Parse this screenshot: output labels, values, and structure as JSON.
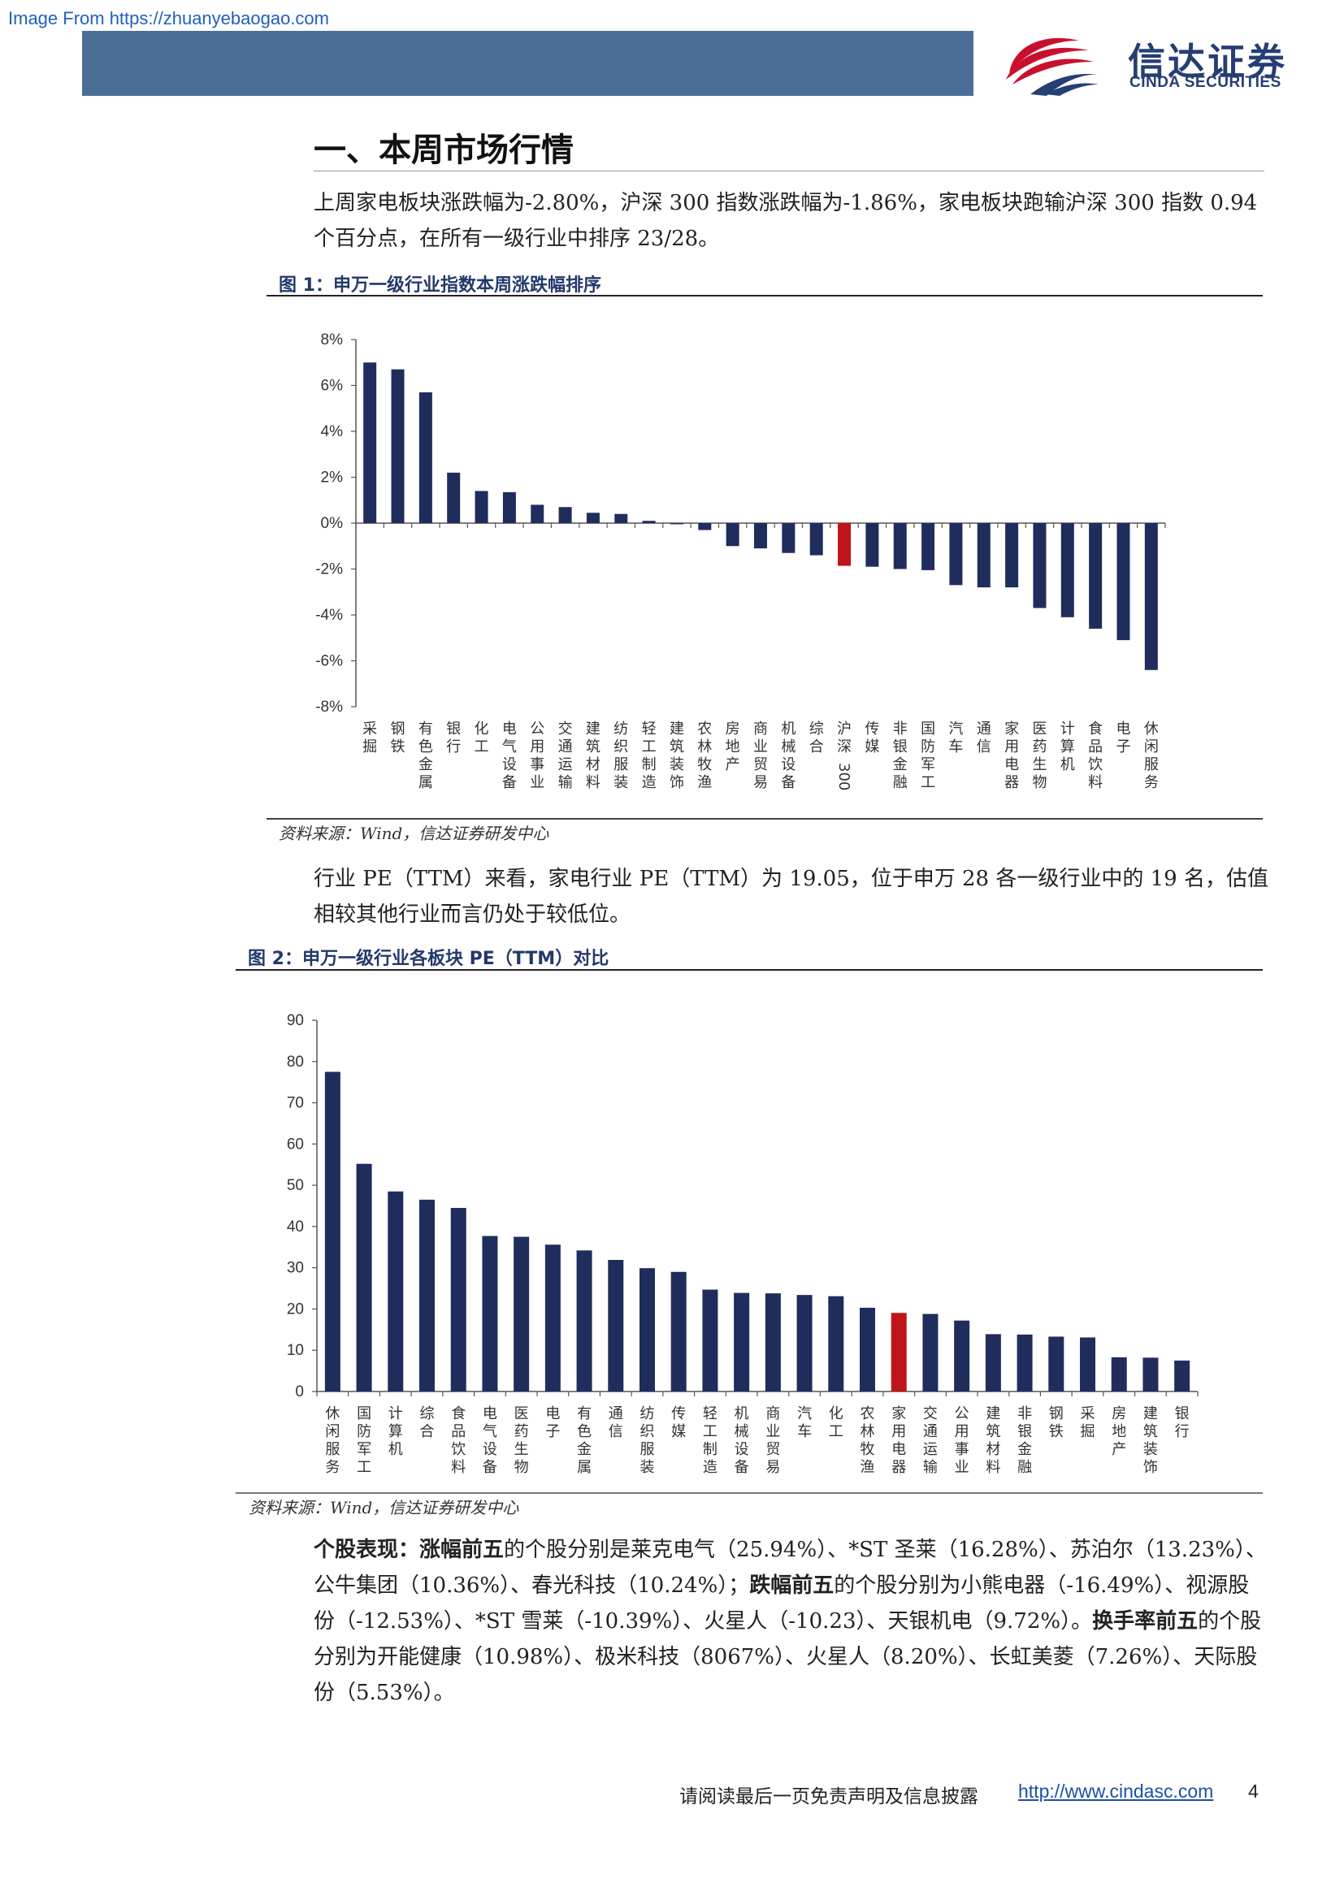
{
  "watermark": "Image From https://zhuanyebaogao.com",
  "header": {
    "logo_cn": "信达证券",
    "logo_en": "CINDA SECURITIES",
    "colors": {
      "bar": "#4a6e96",
      "logo_red": "#c8102e",
      "logo_blue": "#253f73"
    }
  },
  "section_title": "一、本周市场行情",
  "paragraph1": "上周家电板块涨跌幅为-2.80%，沪深 300 指数涨跌幅为-1.86%，家电板块跑输沪深 300 指数 0.94 个百分点，在所有一级行业中排序 23/28。",
  "figure1": {
    "title": "图 1：申万一级行业指数本周涨跌幅排序",
    "source": "资料来源：Wind，信达证券研发中心"
  },
  "paragraph2": "行业 PE（TTM）来看，家电行业 PE（TTM）为 19.05，位于申万 28 各一级行业中的 19 名，估值相较其他行业而言仍处于较低位。",
  "figure2": {
    "title": "图 2：申万一级行业各板块 PE（TTM）对比",
    "source": "资料来源：Wind，信达证券研发中心"
  },
  "paragraph3": {
    "lead": "个股表现：",
    "k1": "涨幅前五",
    "t1": "的个股分别是莱克电气（25.94%）、*ST 圣莱（16.28%）、苏泊尔（13.23%）、公牛集团（10.36%）、春光科技（10.24%）；",
    "k2": "跌幅前五",
    "t2": "的个股分别为小熊电器（-16.49%）、视源股份（-12.53%）、*ST 雪莱（-10.39%）、火星人（-10.23）、天银机电（9.72%）。",
    "k3": "换手率前五",
    "t3": "的个股分别为开能健康（10.98%）、极米科技（8067%）、火星人（8.20%）、长虹美菱（7.26%）、天际股份（5.53%）。"
  },
  "footer": {
    "text": "请阅读最后一页免责声明及信息披露",
    "link": "http://www.cindasc.com",
    "page": "4"
  },
  "chart_data": [
    {
      "type": "bar",
      "title": "图 1：申万一级行业指数本周涨跌幅排序",
      "ylim": [
        -8,
        8
      ],
      "ytick_labels": [
        "8%",
        "6%",
        "4%",
        "2%",
        "0%",
        "-2%",
        "-4%",
        "-6%",
        "-8%"
      ],
      "categories": [
        "采掘",
        "钢铁",
        "有色金属",
        "银行",
        "化工",
        "电气设备",
        "公用事业",
        "交通运输",
        "建筑材料",
        "纺织服装",
        "轻工制造",
        "建筑装饰",
        "农林牧渔",
        "房地产",
        "商业贸易",
        "机械设备",
        "综合",
        "沪深300",
        "传媒",
        "非银金融",
        "国防军工",
        "汽车",
        "通信",
        "家用电器",
        "医药生物",
        "计算机",
        "食品饮料",
        "电子",
        "休闲服务"
      ],
      "values": [
        7.0,
        6.7,
        5.7,
        2.2,
        1.4,
        1.35,
        0.8,
        0.7,
        0.45,
        0.4,
        0.1,
        -0.05,
        -0.3,
        -1.0,
        -1.1,
        -1.3,
        -1.4,
        -1.86,
        -1.9,
        -2.0,
        -2.05,
        -2.7,
        -2.8,
        -2.8,
        -3.7,
        -4.1,
        -4.6,
        -5.1,
        -6.4
      ],
      "highlight_index": 17,
      "colors": {
        "bar": "#1f2d5c",
        "highlight": "#c0141b"
      },
      "grid": false
    },
    {
      "type": "bar",
      "title": "图 2：申万一级行业各板块 PE（TTM）对比",
      "ylim": [
        0,
        90
      ],
      "ytick_labels": [
        "90",
        "80",
        "70",
        "60",
        "50",
        "40",
        "30",
        "20",
        "10",
        "0"
      ],
      "categories": [
        "休闲服务",
        "国防军工",
        "计算机",
        "综合",
        "食品饮料",
        "电气设备",
        "医药生物",
        "电子",
        "有色金属",
        "通信",
        "纺织服装",
        "传媒",
        "轻工制造",
        "机械设备",
        "商业贸易",
        "汽车",
        "化工",
        "农林牧渔",
        "家用电器",
        "交通运输",
        "公用事业",
        "建筑材料",
        "非银金融",
        "钢铁",
        "采掘",
        "房地产",
        "建筑装饰",
        "银行"
      ],
      "values": [
        77.5,
        55.2,
        48.5,
        46.5,
        44.5,
        37.7,
        37.5,
        35.6,
        34.2,
        31.9,
        29.9,
        29.0,
        24.7,
        23.9,
        23.8,
        23.4,
        23.1,
        20.3,
        19.05,
        18.8,
        17.2,
        13.9,
        13.8,
        13.3,
        13.1,
        8.3,
        8.2,
        7.5
      ],
      "highlight_index": 18,
      "colors": {
        "bar": "#1f2d5c",
        "highlight": "#c0141b"
      },
      "grid": false
    }
  ]
}
